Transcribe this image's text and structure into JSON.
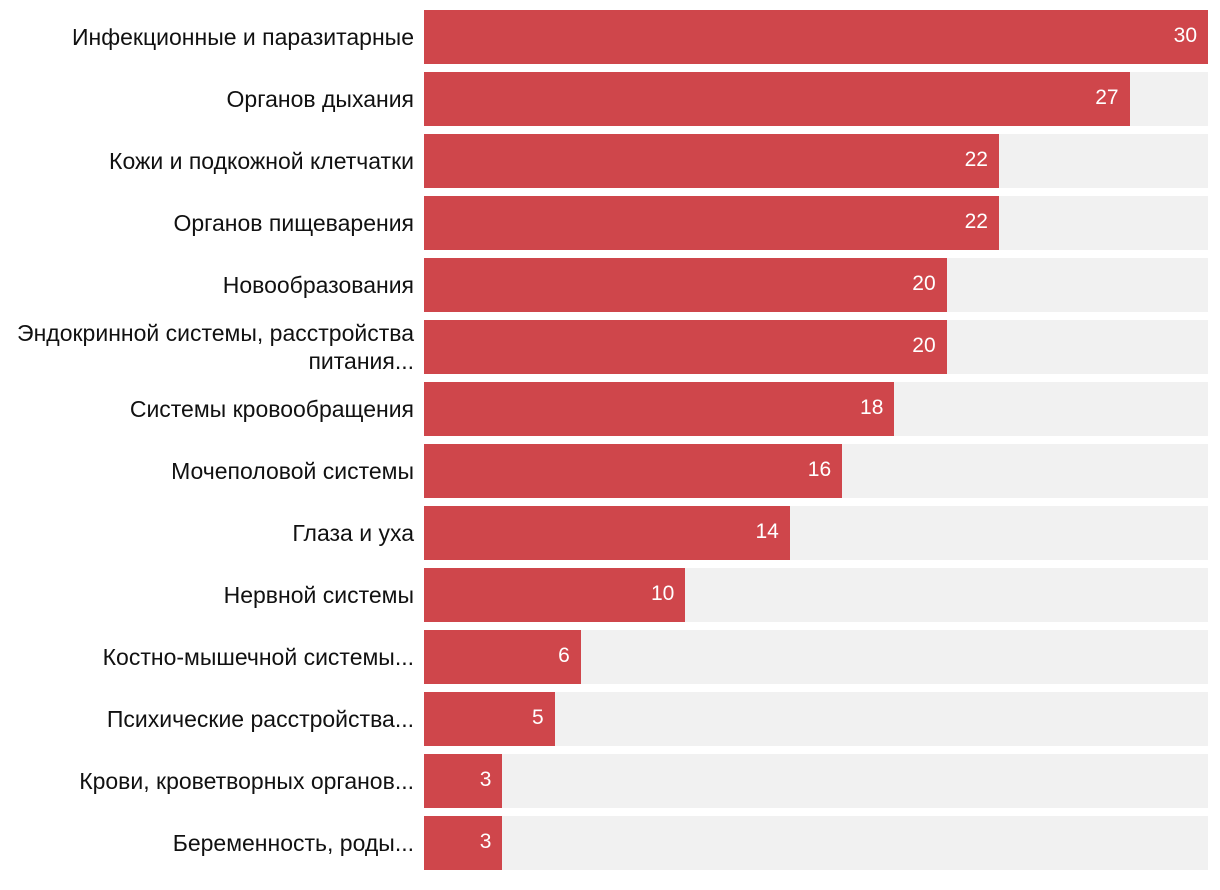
{
  "colors": {
    "bar": "#cf464b",
    "track": "#f1f1f1"
  },
  "chart_data": {
    "type": "bar",
    "orientation": "horizontal",
    "categories": [
      "Инфекционные и паразитарные",
      "Органов дыхания",
      "Кожи и подкожной клетчатки",
      "Органов пищеварения",
      "Новообразования",
      "Эндокринной системы, расстройства питания...",
      "Системы кровообращения",
      "Мочеполовой системы",
      "Глаза и уха",
      "Нервной системы",
      "Костно-мышечной системы...",
      "Психические расстройства...",
      "Крови, кроветворных органов...",
      "Беременность, роды..."
    ],
    "values": [
      30,
      27,
      22,
      22,
      20,
      20,
      18,
      16,
      14,
      10,
      6,
      5,
      3,
      3
    ],
    "xlim": [
      0,
      30
    ],
    "grid": false,
    "legend": "none"
  }
}
